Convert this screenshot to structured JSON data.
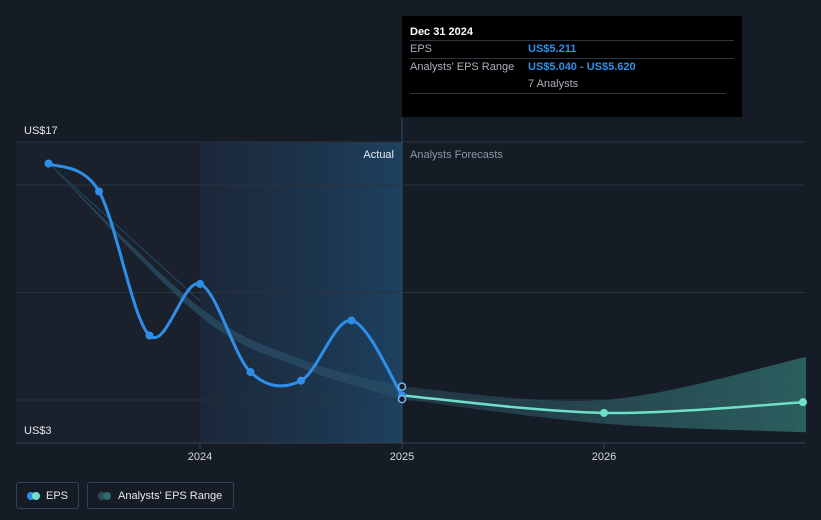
{
  "chart_data": {
    "type": "line",
    "y_axis_labels": {
      "top": "US$17",
      "bottom": "US$3"
    },
    "ylim": [
      3,
      17
    ],
    "x_ticks": [
      "2024",
      "2025",
      "2026"
    ],
    "region_labels": {
      "actual": "Actual",
      "forecast": "Analysts Forecasts"
    },
    "series": [
      {
        "name": "EPS",
        "color": "#2f8fe8",
        "points": [
          {
            "x": 2023.25,
            "y": 16.0
          },
          {
            "x": 2023.5,
            "y": 14.7
          },
          {
            "x": 2023.75,
            "y": 8.0
          },
          {
            "x": 2024.0,
            "y": 10.4
          },
          {
            "x": 2024.25,
            "y": 6.3
          },
          {
            "x": 2024.5,
            "y": 5.9
          },
          {
            "x": 2024.75,
            "y": 8.7
          },
          {
            "x": 2025.0,
            "y": 5.211
          }
        ]
      },
      {
        "name": "EPS forecast",
        "color": "#6fe0c7",
        "points": [
          {
            "x": 2025.0,
            "y": 5.211
          },
          {
            "x": 2026.0,
            "y": 4.4
          },
          {
            "x": 2027.0,
            "y": 4.9
          }
        ]
      },
      {
        "name": "Analysts' EPS Range",
        "color": "#2b5d6a",
        "lower": [
          {
            "x": 2023.25,
            "y": 16.0
          },
          {
            "x": 2024.0,
            "y": 8.9
          },
          {
            "x": 2024.5,
            "y": 6.5
          },
          {
            "x": 2025.0,
            "y": 5.04
          },
          {
            "x": 2026.0,
            "y": 3.9
          },
          {
            "x": 2027.0,
            "y": 3.5
          }
        ],
        "upper": [
          {
            "x": 2023.25,
            "y": 16.0
          },
          {
            "x": 2024.0,
            "y": 9.3
          },
          {
            "x": 2024.5,
            "y": 6.9
          },
          {
            "x": 2025.0,
            "y": 5.62
          },
          {
            "x": 2026.0,
            "y": 5.0
          },
          {
            "x": 2027.0,
            "y": 7.0
          }
        ]
      }
    ]
  },
  "tooltip": {
    "date": "Dec 31 2024",
    "eps_label": "EPS",
    "eps_value": "US$5.211",
    "range_label": "Analysts' EPS Range",
    "range_value": "US$5.040 - US$5.620",
    "analysts": "7 Analysts"
  },
  "legend": {
    "eps": "EPS",
    "range": "Analysts' EPS Range"
  },
  "colors": {
    "eps_line": "#2f8fe8",
    "forecast_line": "#6fe0c7",
    "range_band": "#2b5d6a",
    "background": "#161c26",
    "tooltip_bg": "#000000"
  }
}
